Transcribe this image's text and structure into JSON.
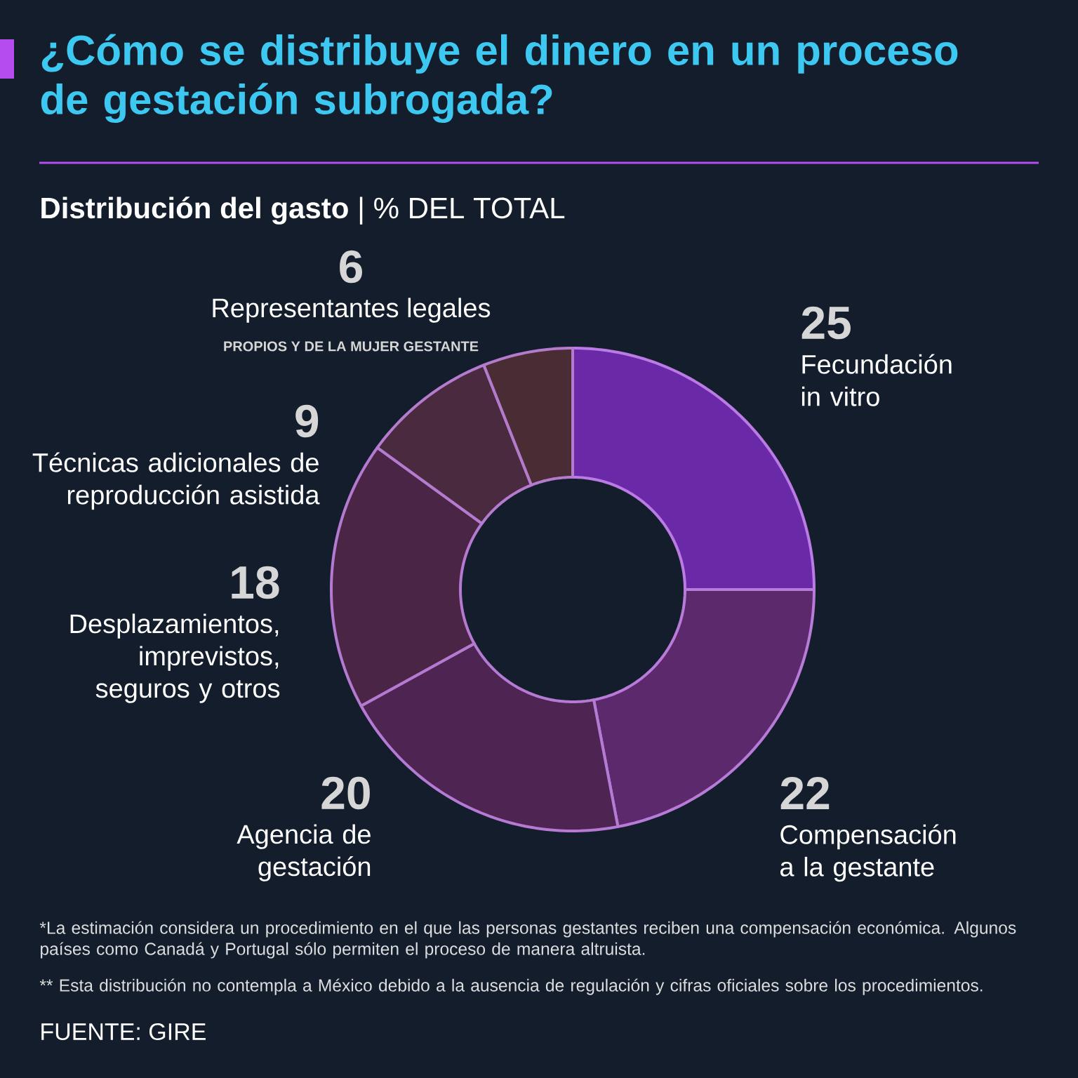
{
  "chart_data": {
    "type": "donut",
    "title": "¿Cómo se distribuye el dinero en un proceso de gestación subrogada?",
    "subtitle": "**Distribución del gasto** | % DEL TOTAL",
    "categories": [
      "Fecundación in vitro",
      "Compensación a la gestante",
      "Agencia de gestación",
      "Desplazamientos, imprevistos, seguros y otros",
      "Técnicas adicionales de reproducción asistida",
      "Representantes legales"
    ],
    "values": [
      25,
      22,
      20,
      18,
      9,
      6
    ],
    "colors": [
      "#6a2aa8",
      "#5c2a6c",
      "#4e2552",
      "#4b2545",
      "#4a2a3e",
      "#4a2c34"
    ],
    "data_labels": true,
    "annotations": [
      "PROPIOS Y DE LA MUJER GESTANTE",
      "*La estimación considera un procedimiento en el que las personas gestantes reciben una compensación económica. Algunos países como Canadá y Portugal sólo permiten el proceso de manera altruista.",
      "** Esta distribución no contempla a México debido a la ausencia de regulación y cifras oficiales sobre los procedimientos.",
      "FUENTE: GIRE"
    ]
  }
}
